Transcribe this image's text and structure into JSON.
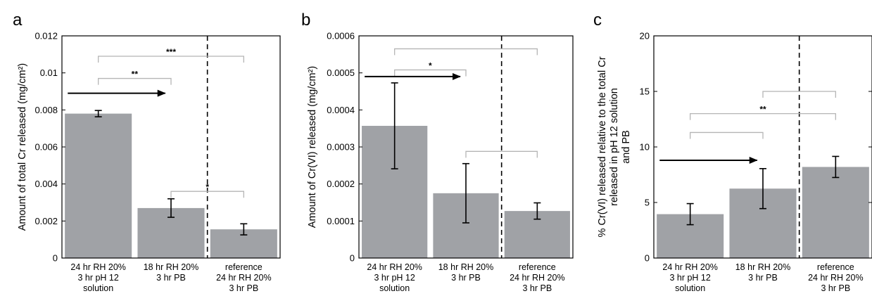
{
  "colors": {
    "bar": "#a0a2a6",
    "axis": "#000000",
    "bracket": "#b5b5b5",
    "arrow": "#000000"
  },
  "chart_data": [
    {
      "type": "bar",
      "panel": "a",
      "ylabel": "Amount of total Cr released (mg/cm²)",
      "ylim": [
        0,
        0.012
      ],
      "yticks": [
        "0",
        "0.002",
        "0.004",
        "0.006",
        "0.008",
        "0.01",
        "0.012"
      ],
      "categories": [
        [
          "24 hr  RH 20%",
          "3 hr pH 12",
          "solution"
        ],
        [
          "18 hr RH 20%",
          "3 hr PB"
        ],
        [
          "reference",
          "24 hr  RH 20%",
          "3 hr PB"
        ]
      ],
      "values": [
        0.0078,
        0.0027,
        0.00155
      ],
      "errors": [
        0.00017,
        0.0005,
        0.0003
      ],
      "dashed_after": 2,
      "brackets": [
        {
          "from": 0,
          "to": 2,
          "y": 0.0109,
          "label": "***"
        },
        {
          "from": 0,
          "to": 1,
          "y": 0.0097,
          "label": "**"
        },
        {
          "from": 1,
          "to": 2,
          "y": 0.0036,
          "label": "*"
        }
      ],
      "arrow": {
        "from": 0,
        "to": 1,
        "y": 0.0089
      }
    },
    {
      "type": "bar",
      "panel": "b",
      "ylabel": "Amount of Cr(VI) released (mg/cm²)",
      "ylim": [
        0,
        0.0006
      ],
      "yticks": [
        "0",
        "0.0001",
        "0.0002",
        "0.0003",
        "0.0004",
        "0.0005",
        "0.0006"
      ],
      "categories": [
        [
          "24 hr  RH 20%",
          "3 hr pH 12",
          "solution"
        ],
        [
          "18 hr RH 20%",
          "3 hr PB"
        ],
        [
          "reference",
          "24 hr  RH 20%",
          "3 hr PB"
        ]
      ],
      "values": [
        0.000357,
        0.000175,
        0.000127
      ],
      "errors": [
        0.000116,
        8e-05,
        2.2e-05
      ],
      "dashed_after": 2,
      "brackets": [
        {
          "from": 0,
          "to": 2,
          "y": 0.000565,
          "label": ""
        },
        {
          "from": 0,
          "to": 1,
          "y": 0.000508,
          "label": "*"
        },
        {
          "from": 1,
          "to": 2,
          "y": 0.000288,
          "label": ""
        }
      ],
      "arrow": {
        "from": 0,
        "to": 1,
        "y": 0.00049
      }
    },
    {
      "type": "bar",
      "panel": "c",
      "ylabel_lines": [
        "% Cr(VI) released relative to the total Cr",
        "released in pH 12 solution",
        "and PB"
      ],
      "ylim": [
        0,
        20
      ],
      "yticks": [
        "0",
        "5",
        "10",
        "15",
        "20"
      ],
      "categories": [
        [
          "24 hr  RH 20%",
          "3 hr pH 12",
          "solution"
        ],
        [
          "18 hr RH 20%",
          "3 hr PB"
        ],
        [
          "reference",
          "24 hr  RH 20%",
          "3 hr PB"
        ]
      ],
      "values": [
        3.95,
        6.25,
        8.2
      ],
      "errors": [
        0.95,
        1.8,
        0.95
      ],
      "dashed_after": 2,
      "brackets": [
        {
          "from": 1,
          "to": 2,
          "y": 15.0,
          "label": ""
        },
        {
          "from": 0,
          "to": 2,
          "y": 13.0,
          "label": "**"
        },
        {
          "from": 0,
          "to": 1,
          "y": 11.3,
          "label": ""
        }
      ],
      "arrow": {
        "from": 0,
        "to": 1,
        "y": 8.8
      }
    }
  ]
}
